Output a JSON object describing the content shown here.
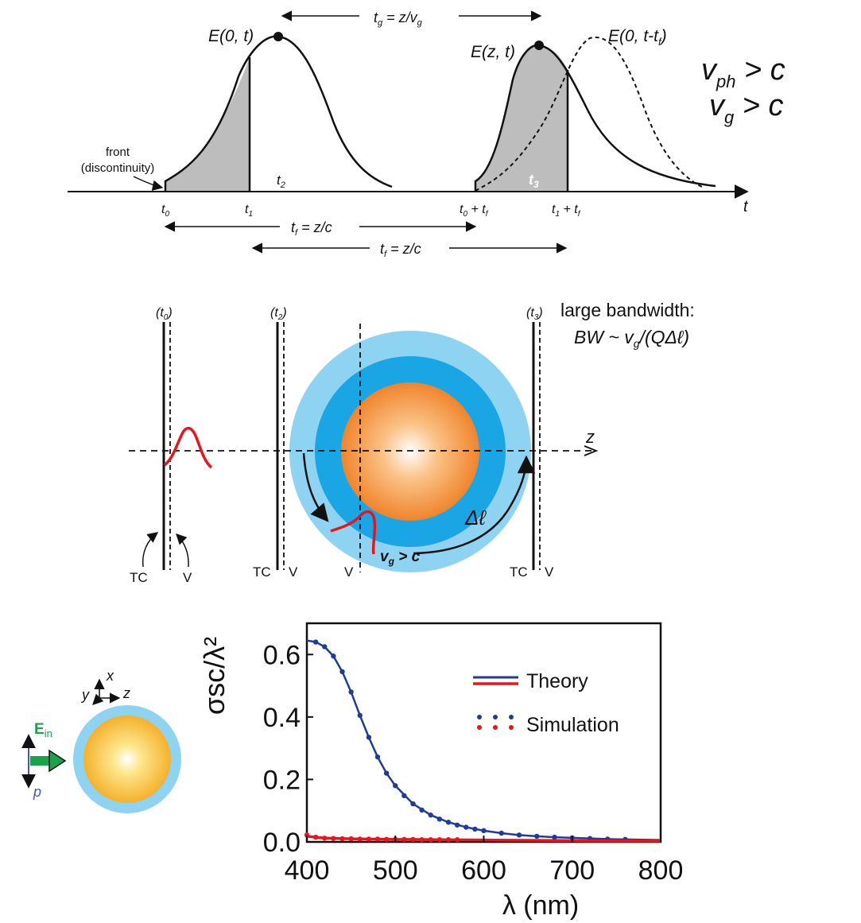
{
  "panel_a": {
    "tg_label": "t",
    "tg_sub": "g",
    "tg_rhs": " = z/v",
    "tg_rhs_sub": "g",
    "e0t": "E(0, t)",
    "ezt": "E(z, t)",
    "e0ttf": "E(0, t-t",
    "e0ttf_sub": "f",
    "e0ttf_close": ")",
    "vph": "v",
    "vph_sub": "ph",
    "vph_rel": " > c",
    "vg": "v",
    "vg_sub": "g",
    "vg_rel": " > c",
    "front_line1": "front",
    "front_line2": "(discontinuity)",
    "t2": "t",
    "t2_sub": "2",
    "t3": "t",
    "t3_sub": "3",
    "t_axis": "t",
    "tick_t0": "t",
    "tick_t0_sub": "0",
    "tick_t1": "t",
    "tick_t1_sub": "1",
    "tick_t0tf": "t",
    "tick_t0tf_sub": "0",
    "tick_t0tf_plus": " + t",
    "tick_t0tf_sub2": "f",
    "tick_t1tf": "t",
    "tick_t1tf_sub": "1",
    "tick_t1tf_plus": " + t",
    "tick_t1tf_sub2": "f",
    "tf1": "t",
    "tf1_sub": "f",
    "tf1_rhs": " = z/c",
    "tf2": "t",
    "tf2_sub": "f",
    "tf2_rhs": " = z/c"
  },
  "panel_b": {
    "t0_open": "(t",
    "t0_sub": "0",
    "t0_close": ")",
    "t2_open": "(t",
    "t2_sub": "2",
    "t2_close": ")",
    "t3_open": "(t",
    "t3_sub": "3",
    "t3_close": ")",
    "bw_line1": "large bandwidth:",
    "bw_line2a": "BW ~ v",
    "bw_line2_sub": "g",
    "bw_line2b": "/(QΔℓ)",
    "z_axis": "z",
    "delta_l": "Δℓ",
    "vg_c": "v",
    "vg_c_sub": "g",
    "vg_c_rel": " > c",
    "tc1": "TC",
    "v1": "V",
    "tc2": "TC",
    "v2": "V",
    "v3": "V",
    "tc3": "TC",
    "v4": "V"
  },
  "panel_c": {
    "axis_x": "x",
    "axis_y": "y",
    "axis_z": "z",
    "ein": "E",
    "ein_sub": "in",
    "p_label": "p"
  },
  "chart_data": {
    "type": "line",
    "xlabel": "λ (nm)",
    "ylabel": "σsc/λ²",
    "xlim": [
      400,
      800
    ],
    "ylim": [
      0,
      0.7
    ],
    "xticks": [
      "400",
      "500",
      "600",
      "700",
      "800"
    ],
    "yticks": [
      "0.0",
      "0.2",
      "0.4",
      "0.6"
    ],
    "legend_placement": "top-right",
    "legend": [
      "Theory",
      "Simulation"
    ],
    "grid": false,
    "colors": {
      "blue": "#1f3c99",
      "red": "#e8141e"
    },
    "series": [
      {
        "name": "Theory",
        "style": "line",
        "color": "#1f3c99",
        "x": [
          400,
          410,
          420,
          430,
          440,
          450,
          460,
          470,
          480,
          490,
          500,
          520,
          540,
          560,
          580,
          600,
          620,
          640,
          660,
          680,
          700,
          720,
          740,
          760,
          780,
          800
        ],
        "y": [
          0.645,
          0.64,
          0.625,
          0.595,
          0.545,
          0.48,
          0.405,
          0.335,
          0.272,
          0.22,
          0.18,
          0.122,
          0.086,
          0.063,
          0.047,
          0.036,
          0.028,
          0.022,
          0.018,
          0.015,
          0.013,
          0.011,
          0.009,
          0.008,
          0.007,
          0.006
        ]
      },
      {
        "name": "Simulation",
        "style": "dots",
        "color": "#1f3c99",
        "x": [
          410,
          420,
          430,
          440,
          450,
          460,
          470,
          480,
          490,
          500,
          510,
          520,
          530,
          540,
          550,
          560,
          570,
          580,
          590,
          600,
          620,
          640,
          660,
          680,
          700,
          720,
          740,
          760
        ],
        "y": [
          0.64,
          0.625,
          0.595,
          0.545,
          0.48,
          0.405,
          0.335,
          0.272,
          0.22,
          0.18,
          0.148,
          0.122,
          0.102,
          0.086,
          0.073,
          0.063,
          0.054,
          0.047,
          0.041,
          0.036,
          0.028,
          0.022,
          0.018,
          0.015,
          0.013,
          0.011,
          0.009,
          0.008
        ]
      },
      {
        "name": "Theory",
        "style": "line",
        "color": "#e8141e",
        "x": [
          400,
          420,
          450,
          500,
          550,
          600,
          650,
          700,
          750,
          800
        ],
        "y": [
          0.018,
          0.012,
          0.01,
          0.008,
          0.007,
          0.006,
          0.005,
          0.004,
          0.003,
          0.003
        ]
      },
      {
        "name": "Simulation",
        "style": "dots",
        "color": "#e8141e",
        "x": [
          400,
          410,
          420,
          430,
          440,
          450,
          460,
          470,
          480,
          490,
          500,
          510,
          520,
          530,
          540,
          550,
          560,
          570
        ],
        "y": [
          0.022,
          0.015,
          0.012,
          0.011,
          0.01,
          0.01,
          0.009,
          0.009,
          0.009,
          0.008,
          0.008,
          0.008,
          0.008,
          0.007,
          0.007,
          0.007,
          0.007,
          0.007
        ]
      }
    ]
  }
}
